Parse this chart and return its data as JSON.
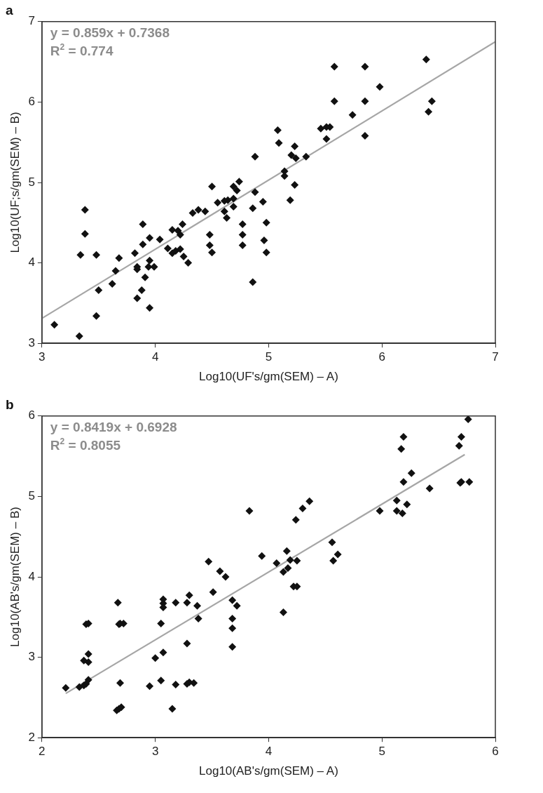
{
  "chart_data": [
    {
      "type": "scatter",
      "title": "a",
      "xlabel": "Log10(UF's/gm(SEM) – A)",
      "ylabel": "Log10(UF;s/gm(SEM) – B)",
      "xlim": [
        3,
        7
      ],
      "xticks": [
        3,
        4,
        5,
        6,
        7
      ],
      "ylim": [
        3,
        7
      ],
      "yticks": [
        3,
        4,
        5,
        6,
        7
      ],
      "grid": false,
      "legend": false,
      "annotations": [
        "y = 0.859x + 0.7368",
        "R$^{2}$ = 0.774"
      ],
      "series": [
        {
          "marker": "diamond",
          "color": "#111111",
          "x": [
            3.11,
            3.33,
            3.38,
            3.38,
            3.34,
            3.48,
            3.5,
            3.48,
            3.62,
            3.65,
            3.68,
            3.82,
            3.84,
            3.84,
            3.84,
            3.88,
            3.91,
            3.89,
            3.89,
            3.95,
            3.95,
            3.94,
            3.99,
            3.95,
            4.04,
            4.11,
            4.15,
            4.15,
            4.2,
            4.22,
            4.24,
            4.22,
            4.18,
            4.25,
            4.29,
            4.33,
            4.38,
            4.44,
            4.48,
            4.48,
            4.5,
            4.5,
            4.55,
            4.61,
            4.63,
            4.61,
            4.64,
            4.69,
            4.69,
            4.69,
            4.72,
            4.74,
            4.77,
            4.77,
            4.77,
            4.86,
            4.88,
            4.88,
            4.95,
            4.98,
            4.96,
            4.98,
            4.86,
            5.08,
            5.09,
            5.14,
            5.14,
            5.19,
            5.2,
            5.23,
            5.24,
            5.23,
            5.33,
            5.46,
            5.51,
            5.54,
            5.51,
            5.58,
            5.58,
            5.74,
            5.85,
            5.85,
            5.85,
            5.98,
            6.39,
            6.44,
            6.41
          ],
          "values": [
            3.23,
            3.09,
            4.66,
            4.36,
            4.1,
            4.1,
            3.66,
            3.34,
            3.74,
            3.9,
            4.06,
            4.12,
            3.95,
            3.92,
            3.56,
            3.66,
            3.82,
            4.48,
            4.23,
            4.31,
            4.03,
            3.95,
            3.95,
            3.44,
            4.29,
            4.18,
            4.12,
            4.41,
            4.4,
            4.35,
            4.48,
            4.17,
            4.15,
            4.08,
            4.0,
            4.62,
            4.66,
            4.64,
            4.35,
            4.22,
            4.13,
            4.95,
            4.75,
            4.64,
            4.56,
            4.77,
            4.78,
            4.8,
            4.7,
            4.95,
            4.9,
            5.01,
            4.48,
            4.35,
            4.22,
            4.68,
            4.88,
            5.32,
            4.76,
            4.5,
            4.28,
            4.13,
            3.76,
            5.65,
            5.49,
            5.14,
            5.08,
            4.78,
            5.34,
            5.45,
            5.3,
            4.97,
            5.32,
            5.67,
            5.69,
            5.69,
            5.54,
            6.44,
            6.01,
            5.84,
            6.44,
            6.01,
            5.58,
            6.19,
            6.53,
            6.01,
            5.88
          ]
        },
        {
          "type": "line",
          "marker": "none",
          "color": "#a6a6a6",
          "x": [
            3,
            7
          ],
          "values": [
            3.31,
            6.75
          ]
        }
      ]
    },
    {
      "type": "scatter",
      "title": "b",
      "xlabel": "Log10(AB's/gm(SEM) – A)",
      "ylabel": "Log10(AB's/gm(SEM) – B)",
      "xlim": [
        2,
        6
      ],
      "xticks": [
        2,
        3,
        4,
        5,
        6
      ],
      "ylim": [
        2,
        6
      ],
      "yticks": [
        2,
        3,
        4,
        5,
        6
      ],
      "grid": false,
      "legend": false,
      "annotations": [
        "y = 0.8419x + 0.6928",
        "R$^{2}$ = 0.8055"
      ],
      "series": [
        {
          "marker": "diamond",
          "color": "#111111",
          "x": [
            2.21,
            2.33,
            2.37,
            2.39,
            2.41,
            2.37,
            2.41,
            2.41,
            2.39,
            2.41,
            2.67,
            2.68,
            2.72,
            2.69,
            2.69,
            2.66,
            2.68,
            2.7,
            2.95,
            3.0,
            3.05,
            3.07,
            3.05,
            3.07,
            3.07,
            3.07,
            3.15,
            3.18,
            3.18,
            3.28,
            3.3,
            3.28,
            3.28,
            3.3,
            3.34,
            3.37,
            3.38,
            3.47,
            3.51,
            3.57,
            3.62,
            3.68,
            3.72,
            3.68,
            3.68,
            3.68,
            3.83,
            3.94,
            4.07,
            4.13,
            4.17,
            4.16,
            4.19,
            4.25,
            4.22,
            4.25,
            4.13,
            4.24,
            4.3,
            4.36,
            4.56,
            4.61,
            4.57,
            4.98,
            5.13,
            5.13,
            5.18,
            5.22,
            5.19,
            5.26,
            5.17,
            5.19,
            5.42,
            5.7,
            5.68,
            5.7,
            5.69,
            5.76,
            5.77
          ],
          "values": [
            2.62,
            2.63,
            2.65,
            2.67,
            2.72,
            2.96,
            2.94,
            3.04,
            3.41,
            3.42,
            3.68,
            3.41,
            3.42,
            3.42,
            2.68,
            2.34,
            2.36,
            2.38,
            2.64,
            2.99,
            2.71,
            3.06,
            3.42,
            3.72,
            3.67,
            3.62,
            2.36,
            3.68,
            2.66,
            3.68,
            3.77,
            3.17,
            2.67,
            2.69,
            2.68,
            3.64,
            3.48,
            4.19,
            3.81,
            4.07,
            4.0,
            3.71,
            3.64,
            3.48,
            3.36,
            3.13,
            4.82,
            4.26,
            4.17,
            4.06,
            4.11,
            4.32,
            4.21,
            4.2,
            3.88,
            3.88,
            3.56,
            4.71,
            4.85,
            4.94,
            4.43,
            4.28,
            4.2,
            4.82,
            4.95,
            4.82,
            4.79,
            4.9,
            5.18,
            5.29,
            5.59,
            5.74,
            5.1,
            5.74,
            5.63,
            5.18,
            5.17,
            5.96,
            5.18
          ]
        },
        {
          "type": "line",
          "marker": "none",
          "color": "#a6a6a6",
          "x": [
            2.21,
            5.73
          ],
          "values": [
            2.55,
            5.52
          ]
        }
      ]
    }
  ]
}
